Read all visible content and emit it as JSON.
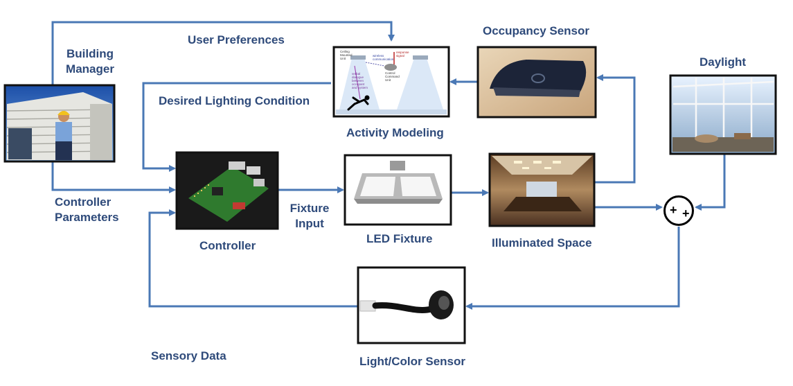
{
  "labels": {
    "building_manager": [
      "Building",
      "Manager"
    ],
    "user_preferences": "User Preferences",
    "occupancy_sensor": "Occupancy Sensor",
    "daylight": "Daylight",
    "desired_lighting_condition": "Desired Lighting Condition",
    "activity_modeling": "Activity Modeling",
    "controller_parameters": [
      "Controller",
      "Parameters"
    ],
    "fixture_input": [
      "Fixture",
      "Input"
    ],
    "controller": "Controller",
    "led_fixture": "LED Fixture",
    "illuminated_space": "Illuminated Space",
    "sensory_data": "Sensory Data",
    "light_color_sensor": "Light/Color Sensor"
  },
  "activity_panel": {
    "ceiling_unit": [
      "Ceiling",
      "Mounted",
      "Unit"
    ],
    "wireless": [
      "wireless",
      "communication"
    ],
    "control_unit": [
      "Control",
      "Command",
      "Unit"
    ],
    "response": [
      "response",
      "signal"
    ],
    "verbal": [
      "verbal",
      "dialogue",
      "between",
      "occupant",
      "and system"
    ]
  },
  "summing_junction": {
    "signs": [
      "+",
      "+"
    ]
  },
  "colors": {
    "arrow": "#4a78b5",
    "label": "#2e4a7a",
    "frame": "#111111"
  }
}
